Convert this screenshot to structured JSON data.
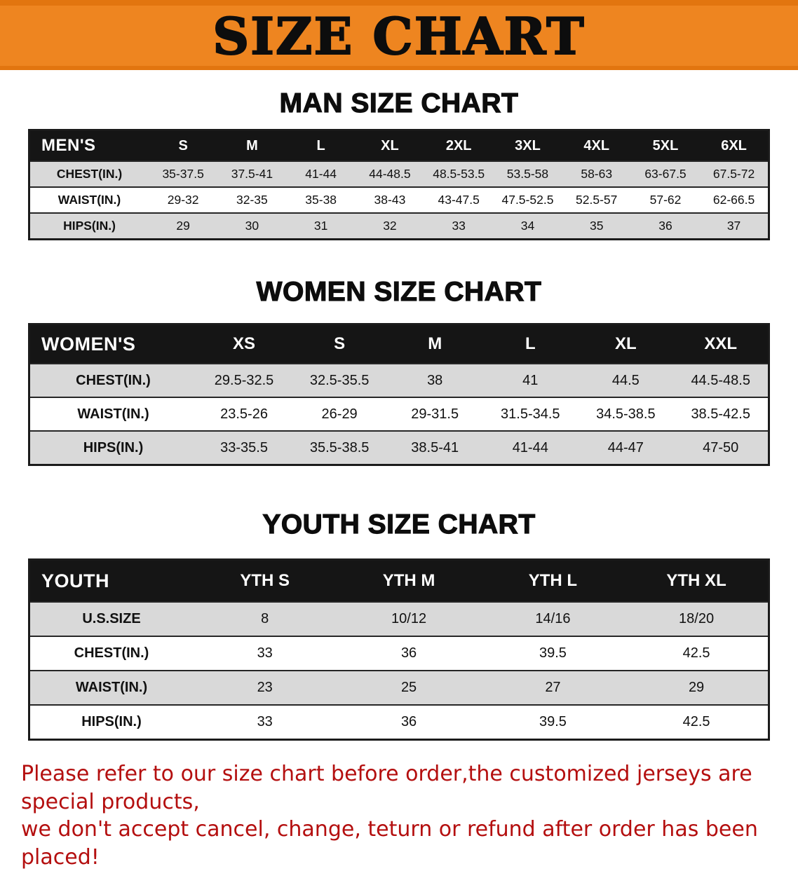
{
  "banner": {
    "title": "SIZE CHART"
  },
  "colors": {
    "banner_orange": "#EE8520",
    "table_header_black": "#151515",
    "row_stripe_gray": "#D9D9D9",
    "notice_red": "#B40F0F"
  },
  "chart_data": [
    {
      "type": "table",
      "title": "MAN SIZE CHART",
      "corner_label": "MEN'S",
      "columns": [
        "S",
        "M",
        "L",
        "XL",
        "2XL",
        "3XL",
        "4XL",
        "5XL",
        "6XL"
      ],
      "rows": [
        [
          "CHEST(IN.)",
          "35-37.5",
          "37.5-41",
          "41-44",
          "44-48.5",
          "48.5-53.5",
          "53.5-58",
          "58-63",
          "63-67.5",
          "67.5-72"
        ],
        [
          "WAIST(IN.)",
          "29-32",
          "32-35",
          "35-38",
          "38-43",
          "43-47.5",
          "47.5-52.5",
          "52.5-57",
          "57-62",
          "62-66.5"
        ],
        [
          "HIPS(IN.)",
          "29",
          "30",
          "31",
          "32",
          "33",
          "34",
          "35",
          "36",
          "37"
        ]
      ]
    },
    {
      "type": "table",
      "title": "WOMEN SIZE CHART",
      "corner_label": "WOMEN'S",
      "columns": [
        "XS",
        "S",
        "M",
        "L",
        "XL",
        "XXL"
      ],
      "rows": [
        [
          "CHEST(IN.)",
          "29.5-32.5",
          "32.5-35.5",
          "38",
          "41",
          "44.5",
          "44.5-48.5"
        ],
        [
          "WAIST(IN.)",
          "23.5-26",
          "26-29",
          "29-31.5",
          "31.5-34.5",
          "34.5-38.5",
          "38.5-42.5"
        ],
        [
          "HIPS(IN.)",
          "33-35.5",
          "35.5-38.5",
          "38.5-41",
          "41-44",
          "44-47",
          "47-50"
        ]
      ]
    },
    {
      "type": "table",
      "title": "YOUTH SIZE CHART",
      "corner_label": "YOUTH",
      "columns": [
        "YTH S",
        "YTH M",
        "YTH L",
        "YTH XL"
      ],
      "rows": [
        [
          "U.S.SIZE",
          "8",
          "10/12",
          "14/16",
          "18/20"
        ],
        [
          "CHEST(IN.)",
          "33",
          "36",
          "39.5",
          "42.5"
        ],
        [
          "WAIST(IN.)",
          "23",
          "25",
          "27",
          "29"
        ],
        [
          "HIPS(IN.)",
          "33",
          "36",
          "39.5",
          "42.5"
        ]
      ]
    }
  ],
  "footer": {
    "line1": "Please refer to our size chart before order,the customized jerseys are special products,",
    "line2": "we don't accept cancel, change, teturn or refund after order has been placed!"
  }
}
